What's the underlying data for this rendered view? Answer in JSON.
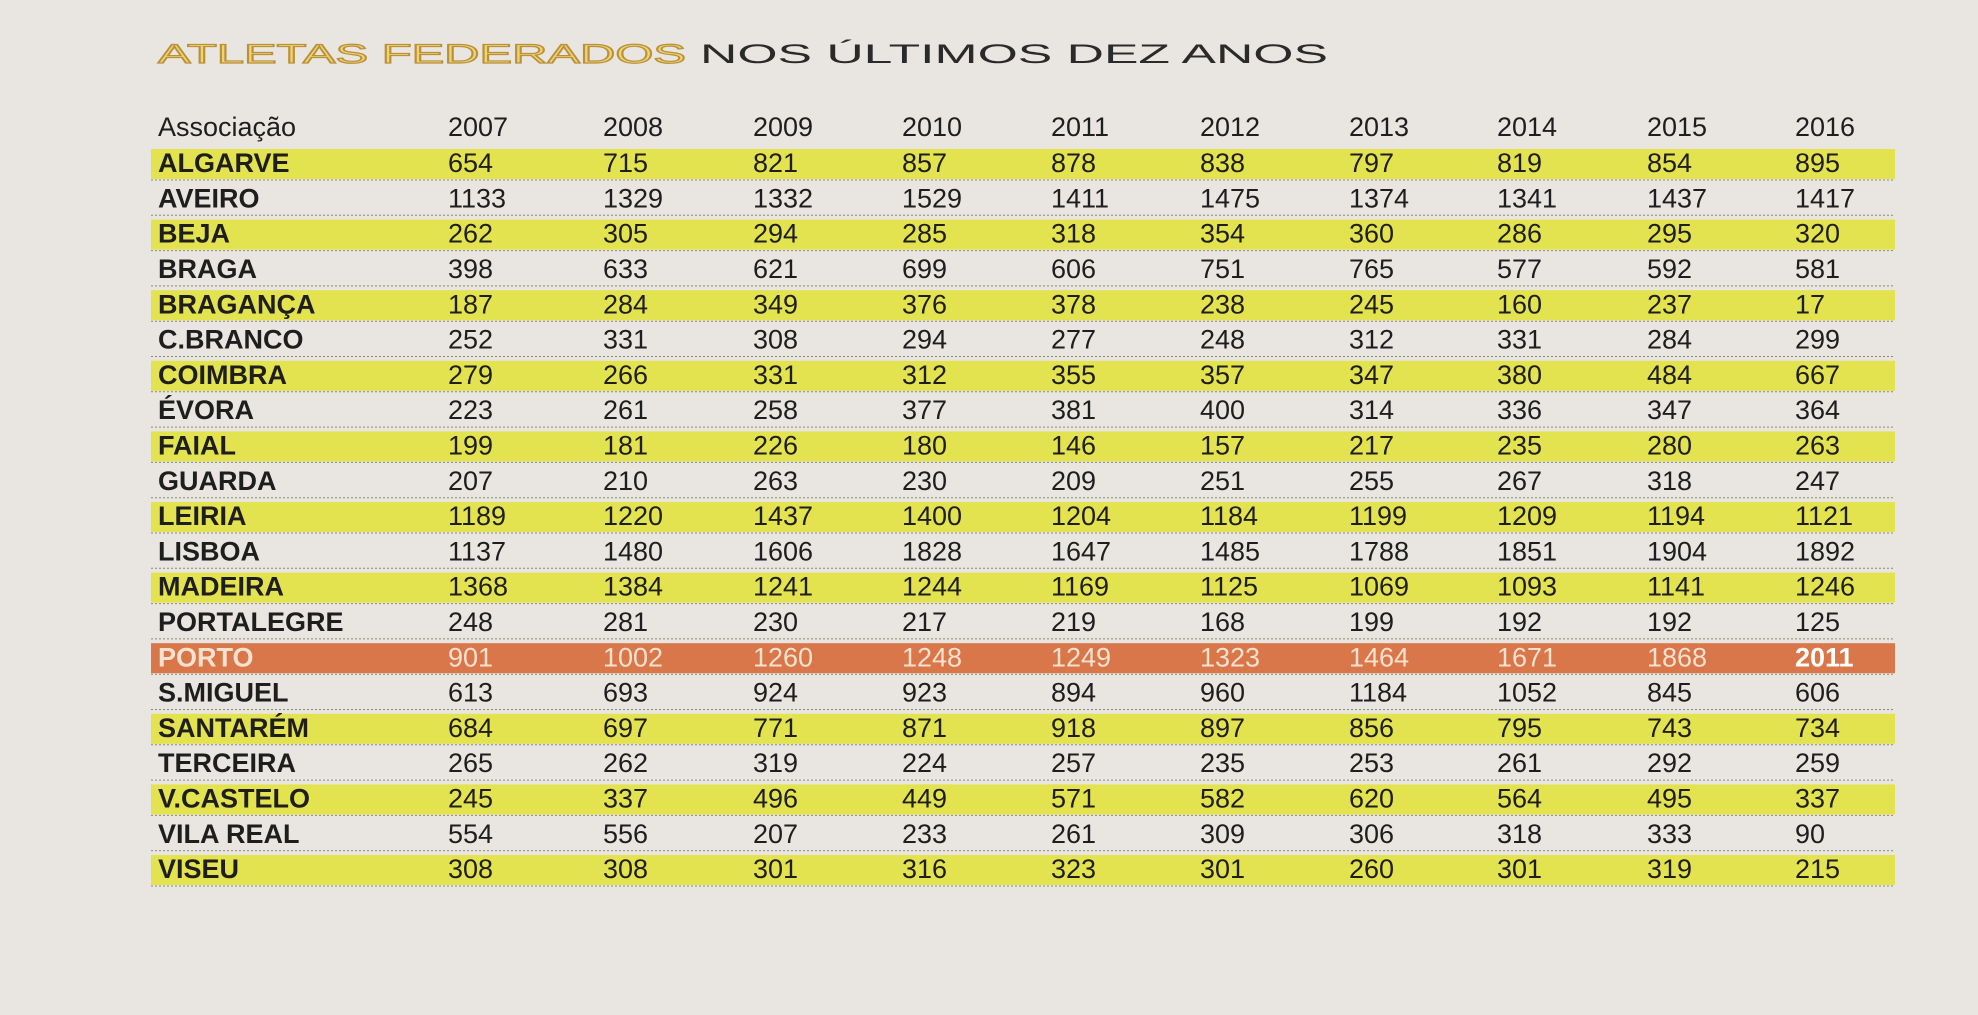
{
  "header": {
    "title_highlight": "ATLETAS FEDERADOS",
    "title_rest": "NOS ÚLTIMOS DEZ ANOS"
  },
  "table": {
    "columns": [
      "Associação",
      "2007",
      "2008",
      "2009",
      "2010",
      "2011",
      "2012",
      "2013",
      "2014",
      "2015",
      "2016"
    ],
    "rows": [
      [
        "ALGARVE",
        654,
        715,
        821,
        857,
        878,
        838,
        797,
        819,
        854,
        895
      ],
      [
        "AVEIRO",
        1133,
        1329,
        1332,
        1529,
        1411,
        1475,
        1374,
        1341,
        1437,
        1417
      ],
      [
        "BEJA",
        262,
        305,
        294,
        285,
        318,
        354,
        360,
        286,
        295,
        320
      ],
      [
        "BRAGA",
        398,
        633,
        621,
        699,
        606,
        751,
        765,
        577,
        592,
        581
      ],
      [
        "BRAGANÇA",
        187,
        284,
        349,
        376,
        378,
        238,
        245,
        160,
        237,
        17
      ],
      [
        "C.BRANCO",
        252,
        331,
        308,
        294,
        277,
        248,
        312,
        331,
        284,
        299
      ],
      [
        "COIMBRA",
        279,
        266,
        331,
        312,
        355,
        357,
        347,
        380,
        484,
        667
      ],
      [
        "ÉVORA",
        223,
        261,
        258,
        377,
        381,
        400,
        314,
        336,
        347,
        364
      ],
      [
        "FAIAL",
        199,
        181,
        226,
        180,
        146,
        157,
        217,
        235,
        280,
        263
      ],
      [
        "GUARDA",
        207,
        210,
        263,
        230,
        209,
        251,
        255,
        267,
        318,
        247
      ],
      [
        "LEIRIA",
        1189,
        1220,
        1437,
        1400,
        1204,
        1184,
        1199,
        1209,
        1194,
        1121
      ],
      [
        "LISBOA",
        1137,
        1480,
        1606,
        1828,
        1647,
        1485,
        1788,
        1851,
        1904,
        1892
      ],
      [
        "MADEIRA",
        1368,
        1384,
        1241,
        1244,
        1169,
        1125,
        1069,
        1093,
        1141,
        1246
      ],
      [
        "PORTALEGRE",
        248,
        281,
        230,
        217,
        219,
        168,
        199,
        192,
        192,
        125
      ],
      [
        "PORTO",
        901,
        1002,
        1260,
        1248,
        1249,
        1323,
        1464,
        1671,
        1868,
        2011
      ],
      [
        "S.MIGUEL",
        613,
        693,
        924,
        923,
        894,
        960,
        1184,
        1052,
        845,
        606
      ],
      [
        "SANTARÉM",
        684,
        697,
        771,
        871,
        918,
        897,
        856,
        795,
        743,
        734
      ],
      [
        "TERCEIRA",
        265,
        262,
        319,
        224,
        257,
        235,
        253,
        261,
        292,
        259
      ],
      [
        "V.CASTELO",
        245,
        337,
        496,
        449,
        571,
        582,
        620,
        564,
        495,
        337
      ],
      [
        "VILA REAL",
        554,
        556,
        207,
        233,
        261,
        309,
        306,
        318,
        333,
        90
      ],
      [
        "VISEU",
        308,
        308,
        301,
        316,
        323,
        301,
        260,
        301,
        319,
        215
      ]
    ]
  }
}
